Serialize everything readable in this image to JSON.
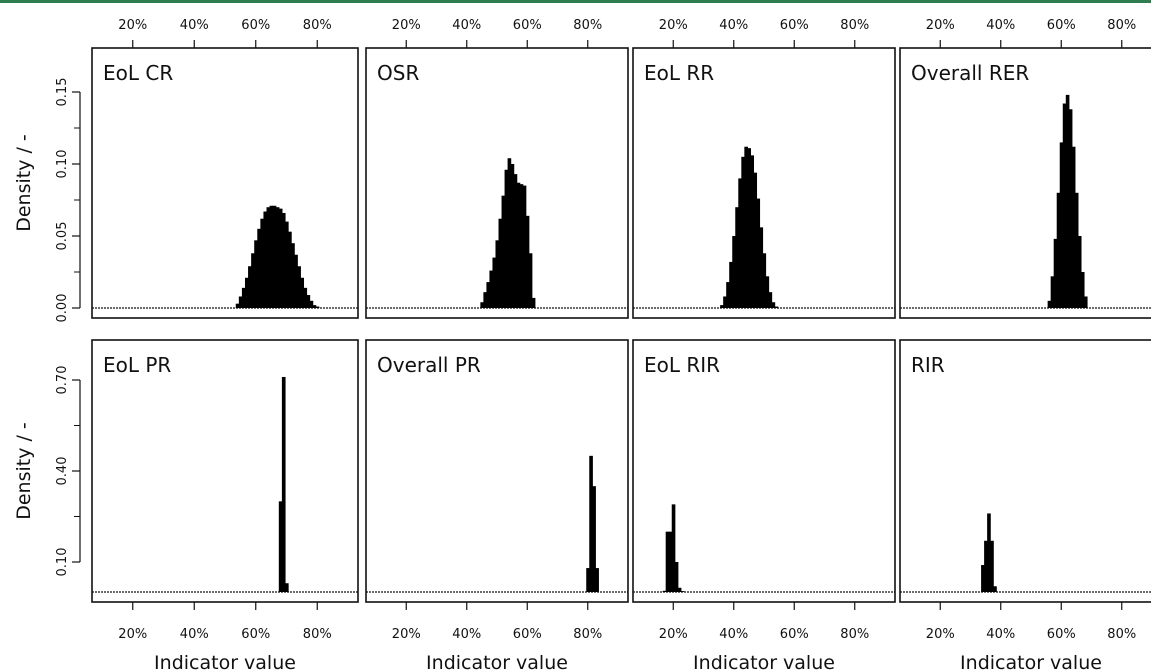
{
  "figure": {
    "ylabel": "Density / -",
    "xlabel": "Indicator value",
    "x_tick_labels": [
      "20%",
      "40%",
      "60%",
      "80%"
    ],
    "rows": [
      {
        "y_tick_labels": [
          "0.00",
          "0.05",
          "0.10",
          "0.15"
        ]
      },
      {
        "y_tick_labels": [
          "0.10",
          "0.40",
          "0.70"
        ]
      }
    ]
  },
  "chart_data": [
    {
      "type": "bar",
      "title": "EoL CR",
      "xlabel": "",
      "ylabel": "Density / -",
      "xlim": [
        0.1,
        0.9
      ],
      "ylim": [
        0,
        0.18
      ],
      "x": [
        0.54,
        0.55,
        0.56,
        0.57,
        0.58,
        0.59,
        0.6,
        0.61,
        0.62,
        0.63,
        0.64,
        0.65,
        0.66,
        0.67,
        0.68,
        0.69,
        0.7,
        0.71,
        0.72,
        0.73,
        0.74,
        0.75,
        0.76,
        0.77,
        0.78,
        0.79,
        0.8
      ],
      "values": [
        0.003,
        0.008,
        0.014,
        0.021,
        0.029,
        0.038,
        0.047,
        0.055,
        0.062,
        0.067,
        0.07,
        0.071,
        0.071,
        0.07,
        0.069,
        0.066,
        0.06,
        0.053,
        0.045,
        0.037,
        0.029,
        0.021,
        0.014,
        0.009,
        0.005,
        0.002,
        0.001
      ]
    },
    {
      "type": "bar",
      "title": "OSR",
      "xlabel": "",
      "ylabel": "",
      "xlim": [
        0.1,
        0.9
      ],
      "ylim": [
        0,
        0.18
      ],
      "x": [
        0.45,
        0.46,
        0.47,
        0.48,
        0.49,
        0.5,
        0.51,
        0.52,
        0.53,
        0.54,
        0.55,
        0.56,
        0.57,
        0.58,
        0.59,
        0.6,
        0.61,
        0.62
      ],
      "values": [
        0.004,
        0.011,
        0.018,
        0.026,
        0.035,
        0.047,
        0.062,
        0.078,
        0.096,
        0.104,
        0.1,
        0.093,
        0.087,
        0.086,
        0.085,
        0.064,
        0.038,
        0.007
      ]
    },
    {
      "type": "bar",
      "title": "EoL RR",
      "xlabel": "",
      "ylabel": "",
      "xlim": [
        0.1,
        0.9
      ],
      "ylim": [
        0,
        0.18
      ],
      "x": [
        0.36,
        0.37,
        0.38,
        0.39,
        0.4,
        0.41,
        0.42,
        0.43,
        0.44,
        0.45,
        0.46,
        0.47,
        0.48,
        0.49,
        0.5,
        0.51,
        0.52,
        0.53,
        0.54
      ],
      "values": [
        0.002,
        0.008,
        0.018,
        0.032,
        0.05,
        0.07,
        0.09,
        0.105,
        0.112,
        0.111,
        0.106,
        0.094,
        0.076,
        0.056,
        0.038,
        0.022,
        0.011,
        0.004,
        0.001
      ]
    },
    {
      "type": "bar",
      "title": "Overall RER",
      "xlabel": "",
      "ylabel": "",
      "xlim": [
        0.1,
        0.9
      ],
      "ylim": [
        0,
        0.18
      ],
      "x": [
        0.56,
        0.57,
        0.58,
        0.59,
        0.6,
        0.61,
        0.62,
        0.63,
        0.64,
        0.65,
        0.66,
        0.67,
        0.68
      ],
      "values": [
        0.005,
        0.022,
        0.048,
        0.08,
        0.115,
        0.142,
        0.148,
        0.138,
        0.112,
        0.08,
        0.05,
        0.025,
        0.008
      ]
    },
    {
      "type": "bar",
      "title": "EoL PR",
      "xlabel": "Indicator value",
      "ylabel": "Density / -",
      "xlim": [
        0.1,
        0.9
      ],
      "ylim": [
        0,
        0.85
      ],
      "x": [
        0.68,
        0.69,
        0.7
      ],
      "values": [
        0.3,
        0.71,
        0.03
      ]
    },
    {
      "type": "bar",
      "title": "Overall PR",
      "xlabel": "Indicator value",
      "ylabel": "",
      "xlim": [
        0.1,
        0.9
      ],
      "ylim": [
        0,
        0.85
      ],
      "x": [
        0.8,
        0.81,
        0.82,
        0.83
      ],
      "values": [
        0.08,
        0.45,
        0.35,
        0.08
      ]
    },
    {
      "type": "bar",
      "title": "EoL RIR",
      "xlabel": "Indicator value",
      "ylabel": "",
      "xlim": [
        0.1,
        0.9
      ],
      "ylim": [
        0,
        0.85
      ],
      "x": [
        0.17,
        0.18,
        0.19,
        0.2,
        0.21,
        0.22,
        0.23
      ],
      "values": [
        0.005,
        0.2,
        0.2,
        0.29,
        0.1,
        0.015,
        0.004
      ]
    },
    {
      "type": "bar",
      "title": "RIR",
      "xlabel": "Indicator value",
      "ylabel": "",
      "xlim": [
        0.1,
        0.9
      ],
      "ylim": [
        0,
        0.85
      ],
      "x": [
        0.34,
        0.35,
        0.36,
        0.37,
        0.38
      ],
      "values": [
        0.09,
        0.17,
        0.26,
        0.17,
        0.02
      ]
    }
  ]
}
